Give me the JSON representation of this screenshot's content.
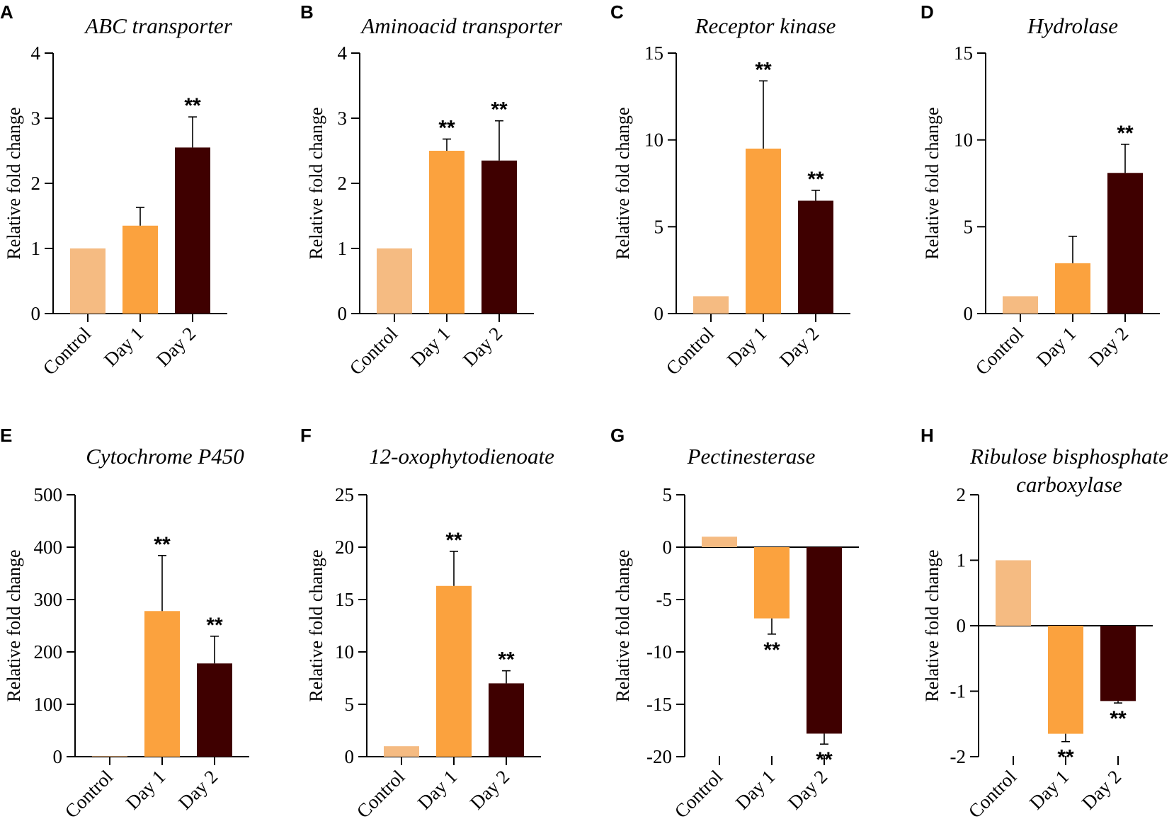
{
  "y_axis_label": "Relative fold change",
  "colors": {
    "Control": "#f5bb82",
    "Day 1": "#fba23e",
    "Day 2": "#3f0000"
  },
  "chart_data": [
    {
      "panel": "A",
      "type": "bar",
      "title": [
        "ABC transporter"
      ],
      "ylabel": "Relative fold change",
      "ylim": [
        0,
        4
      ],
      "yticks": [
        0,
        1,
        2,
        3,
        4
      ],
      "ytick_labels": [
        "0",
        "1",
        "2",
        "3",
        "4"
      ],
      "categories": [
        "Control",
        "Day 1",
        "Day 2"
      ],
      "values": [
        1.0,
        1.35,
        2.55
      ],
      "errors": [
        0,
        0.28,
        0.47
      ],
      "significance": [
        "",
        "",
        "**"
      ]
    },
    {
      "panel": "B",
      "type": "bar",
      "title": [
        "Aminoacid transporter"
      ],
      "ylabel": "Relative fold change",
      "ylim": [
        0,
        4
      ],
      "yticks": [
        0,
        1,
        2,
        3,
        4
      ],
      "ytick_labels": [
        "0",
        "1",
        "2",
        "3",
        "4"
      ],
      "categories": [
        "Control",
        "Day 1",
        "Day 2"
      ],
      "values": [
        1.0,
        2.5,
        2.35
      ],
      "errors": [
        0,
        0.18,
        0.61
      ],
      "significance": [
        "",
        "**",
        "**"
      ]
    },
    {
      "panel": "C",
      "type": "bar",
      "title": [
        "Receptor kinase"
      ],
      "ylabel": "Relative fold change",
      "ylim": [
        0,
        15
      ],
      "yticks": [
        0,
        5,
        10,
        15
      ],
      "ytick_labels": [
        "0",
        "5",
        "10",
        "15"
      ],
      "categories": [
        "Control",
        "Day 1",
        "Day 2"
      ],
      "values": [
        1.0,
        9.5,
        6.5
      ],
      "errors": [
        0,
        3.9,
        0.6
      ],
      "significance": [
        "",
        "**",
        "**"
      ]
    },
    {
      "panel": "D",
      "type": "bar",
      "title": [
        "Hydrolase"
      ],
      "ylabel": "Relative fold change",
      "ylim": [
        0,
        15
      ],
      "yticks": [
        0,
        5,
        10,
        15
      ],
      "ytick_labels": [
        "0",
        "5",
        "10",
        "15"
      ],
      "categories": [
        "Control",
        "Day 1",
        "Day 2"
      ],
      "values": [
        1.0,
        2.9,
        8.1
      ],
      "errors": [
        0,
        1.55,
        1.65
      ],
      "significance": [
        "",
        "",
        "**"
      ]
    },
    {
      "panel": "E",
      "type": "bar",
      "title": [
        "Cytochrome P450"
      ],
      "ylabel": "Relative fold change",
      "ylim": [
        0,
        500
      ],
      "yticks": [
        0,
        100,
        200,
        300,
        400,
        500
      ],
      "ytick_labels": [
        "0",
        "100",
        "200",
        "300",
        "400",
        "500"
      ],
      "categories": [
        "Control",
        "Day 1",
        "Day 2"
      ],
      "values": [
        1.0,
        278,
        178
      ],
      "errors": [
        0,
        106,
        52
      ],
      "significance": [
        "",
        "**",
        "**"
      ]
    },
    {
      "panel": "F",
      "type": "bar",
      "title": [
        "12-oxophytodienoate"
      ],
      "ylabel": "Relative fold change",
      "ylim": [
        0,
        25
      ],
      "yticks": [
        0,
        5,
        10,
        15,
        20,
        25
      ],
      "ytick_labels": [
        "0",
        "5",
        "10",
        "15",
        "20",
        "25"
      ],
      "categories": [
        "Control",
        "Day 1",
        "Day 2"
      ],
      "values": [
        1.0,
        16.3,
        7.0
      ],
      "errors": [
        0,
        3.3,
        1.2
      ],
      "significance": [
        "",
        "**",
        "**"
      ]
    },
    {
      "panel": "G",
      "type": "bar",
      "title": [
        "Pectinesterase"
      ],
      "ylabel": "Relative fold change",
      "ylim": [
        -20,
        5
      ],
      "yticks": [
        -20,
        -15,
        -10,
        -5,
        0,
        5
      ],
      "ytick_labels": [
        "-20",
        "-15",
        "-10",
        "-5",
        "0",
        "5"
      ],
      "categories": [
        "Control",
        "Day 1",
        "Day 2"
      ],
      "values": [
        1.0,
        -6.8,
        -17.8
      ],
      "errors": [
        0,
        1.5,
        1.0
      ],
      "significance": [
        "",
        "**",
        "**"
      ]
    },
    {
      "panel": "H",
      "type": "bar",
      "title": [
        "Ribulose bisphosphate",
        "carboxylase"
      ],
      "ylabel": "Relative fold change",
      "ylim": [
        -2,
        2
      ],
      "yticks": [
        -2,
        -1,
        0,
        1,
        2
      ],
      "ytick_labels": [
        "-2",
        "-1",
        "0",
        "1",
        "2"
      ],
      "categories": [
        "Control",
        "Day 1",
        "Day 2"
      ],
      "values": [
        1.0,
        -1.65,
        -1.15
      ],
      "errors": [
        0,
        0.12,
        0.03
      ],
      "significance": [
        "",
        "**",
        "**"
      ]
    }
  ]
}
